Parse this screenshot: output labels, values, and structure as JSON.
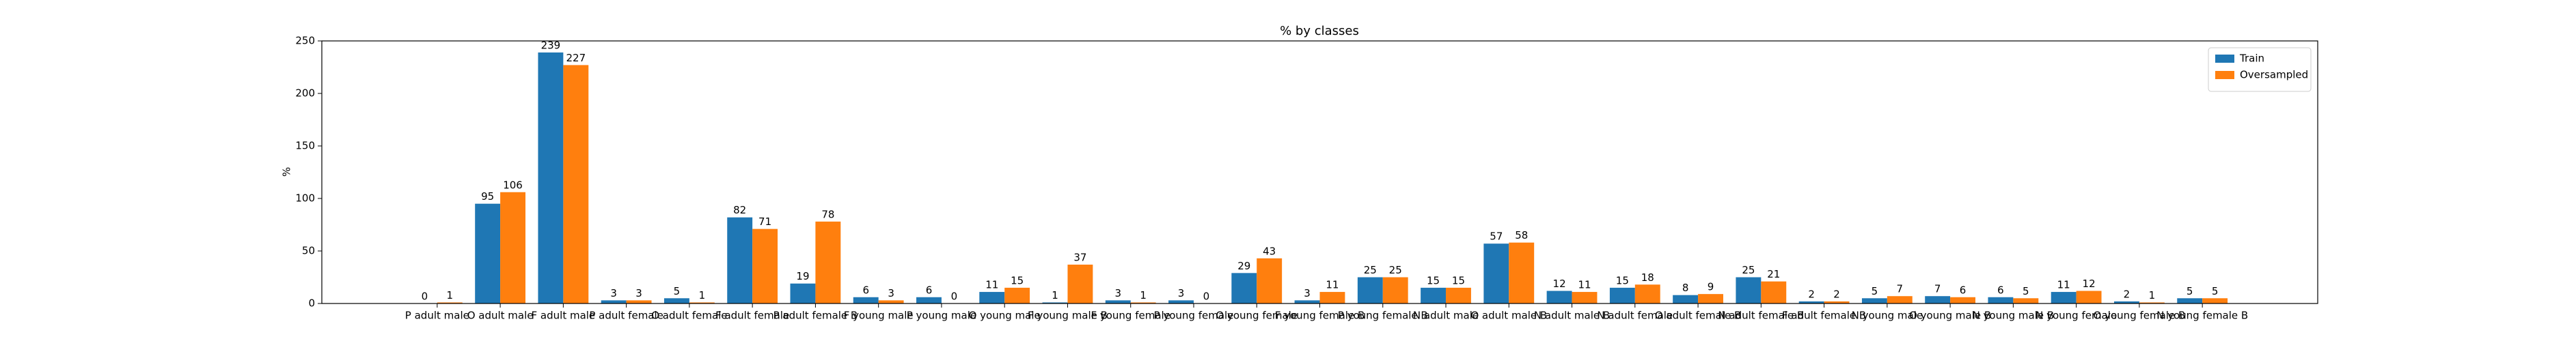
{
  "chart_data": {
    "type": "bar",
    "title": "% by classes",
    "y_label": "%",
    "categories": [
      "P adult male",
      "O adult male",
      "F adult male",
      "P adult female",
      "O adult female",
      "F adult female",
      "P adult female B",
      "F young male",
      "P young male",
      "O young male",
      "F young male B",
      "F young female",
      "P young female",
      "O young female",
      "F young female B",
      "P young female B",
      "N adult male",
      "O adult male B",
      "N adult male B",
      "N adult female",
      "O adult female B",
      "N adult female B",
      "F adult female B",
      "N young male",
      "O young male B",
      "N young male B",
      "N young female",
      "O young female B",
      "N young female B"
    ],
    "series": [
      {
        "name": "Train",
        "color": "#1f77b4",
        "values": [
          0,
          95,
          239,
          3,
          5,
          82,
          19,
          6,
          6,
          11,
          1,
          3,
          3,
          29,
          3,
          25,
          15,
          57,
          12,
          15,
          8,
          25,
          2,
          5,
          7,
          6,
          11,
          2,
          5
        ]
      },
      {
        "name": "Oversampled",
        "color": "#ff7f0e",
        "values": [
          1,
          106,
          227,
          3,
          1,
          71,
          78,
          3,
          0,
          15,
          37,
          1,
          0,
          43,
          11,
          25,
          15,
          58,
          11,
          18,
          9,
          21,
          2,
          7,
          6,
          5,
          12,
          1,
          5
        ]
      }
    ],
    "ylim": [
      0,
      250
    ],
    "yticks": [
      0,
      50,
      100,
      150,
      200,
      250
    ],
    "legend": "upper right",
    "grid": false
  }
}
